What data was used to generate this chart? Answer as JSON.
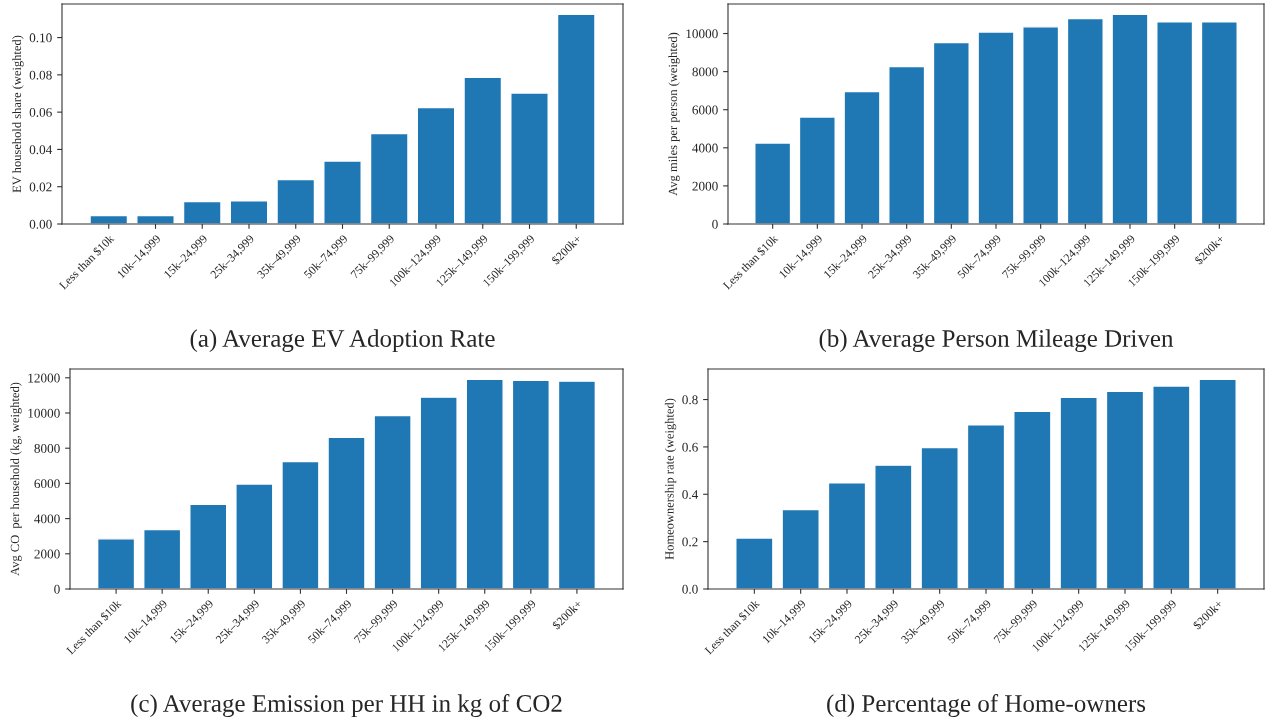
{
  "chart_data": [
    {
      "type": "bar",
      "title": "(a) Average EV Adoption Rate",
      "ylabel": "EV household share (weighted)",
      "categories": [
        "Less than $10k",
        "10k–14,999",
        "15k–24,999",
        "25k–34,999",
        "35k–49,999",
        "50k–74,999",
        "75k–99,999",
        "100k–124,999",
        "125k–149,999",
        "150k–199,999",
        "$200k+"
      ],
      "values": [
        0.0045,
        0.0045,
        0.012,
        0.0125,
        0.0238,
        0.0338,
        0.0485,
        0.0625,
        0.0787,
        0.0702,
        0.1125
      ],
      "color": "#1f77b4",
      "ylim": [
        0,
        0.118
      ],
      "yticks": [
        {
          "value": 0,
          "label": "0.00"
        },
        {
          "value": 0.02,
          "label": "0.02"
        },
        {
          "value": 0.04,
          "label": "0.04"
        },
        {
          "value": 0.06,
          "label": "0.06"
        },
        {
          "value": 0.08,
          "label": "0.08"
        },
        {
          "value": 0.1,
          "label": "0.10"
        }
      ],
      "grid": false
    },
    {
      "type": "bar",
      "title": "(b) Average Person Mileage Driven",
      "ylabel": "Avg miles per person (weighted)",
      "categories": [
        "Less than $10k",
        "10k–14,999",
        "15k–24,999",
        "25k–34,999",
        "35k–49,999",
        "50k–74,999",
        "75k–99,999",
        "100k–124,999",
        "125k–149,999",
        "150k–199,999",
        "$200k+"
      ],
      "values": [
        4250,
        5620,
        6950,
        8270,
        9520,
        10080,
        10350,
        10790,
        11010,
        10610,
        10610
      ],
      "color": "#1f77b4",
      "ylim": [
        0,
        11550
      ],
      "yticks": [
        0,
        2000,
        4000,
        6000,
        8000,
        10000
      ],
      "grid": false
    },
    {
      "type": "bar",
      "title": "(c) Average Emission per HH in kg of CO2",
      "ylabel": "Avg CO  per household (kg, weighted)",
      "categories": [
        "Less than $10k",
        "10k–14,999",
        "15k–24,999",
        "25k–34,999",
        "35k–49,999",
        "50k–74,999",
        "75k–99,999",
        "100k–124,999",
        "125k–149,999",
        "150k–199,999",
        "$200k+"
      ],
      "values": [
        2850,
        3380,
        4810,
        5960,
        7240,
        8620,
        9860,
        10900,
        11920,
        11860,
        11810
      ],
      "color": "#1f77b4",
      "ylim": [
        0,
        12500
      ],
      "yticks": [
        0,
        2000,
        4000,
        6000,
        8000,
        10000,
        12000
      ],
      "grid": false
    },
    {
      "type": "bar",
      "title": "(d) Percentage of Home-owners",
      "ylabel": "Homeownership rate (weighted)",
      "categories": [
        "Less than $10k",
        "10k–14,999",
        "15k–24,999",
        "25k–34,999",
        "35k–49,999",
        "50k–74,999",
        "75k–99,999",
        "100k–124,999",
        "125k–149,999",
        "150k–199,999",
        "$200k+"
      ],
      "values": [
        0.215,
        0.335,
        0.448,
        0.523,
        0.597,
        0.693,
        0.75,
        0.81,
        0.835,
        0.857,
        0.885
      ],
      "color": "#1f77b4",
      "ylim": [
        0,
        0.929
      ],
      "yticks": [
        {
          "value": 0,
          "label": "0.0"
        },
        {
          "value": 0.2,
          "label": "0.2"
        },
        {
          "value": 0.4,
          "label": "0.4"
        },
        {
          "value": 0.6,
          "label": "0.6"
        },
        {
          "value": 0.8,
          "label": "0.8"
        }
      ],
      "grid": false
    }
  ]
}
